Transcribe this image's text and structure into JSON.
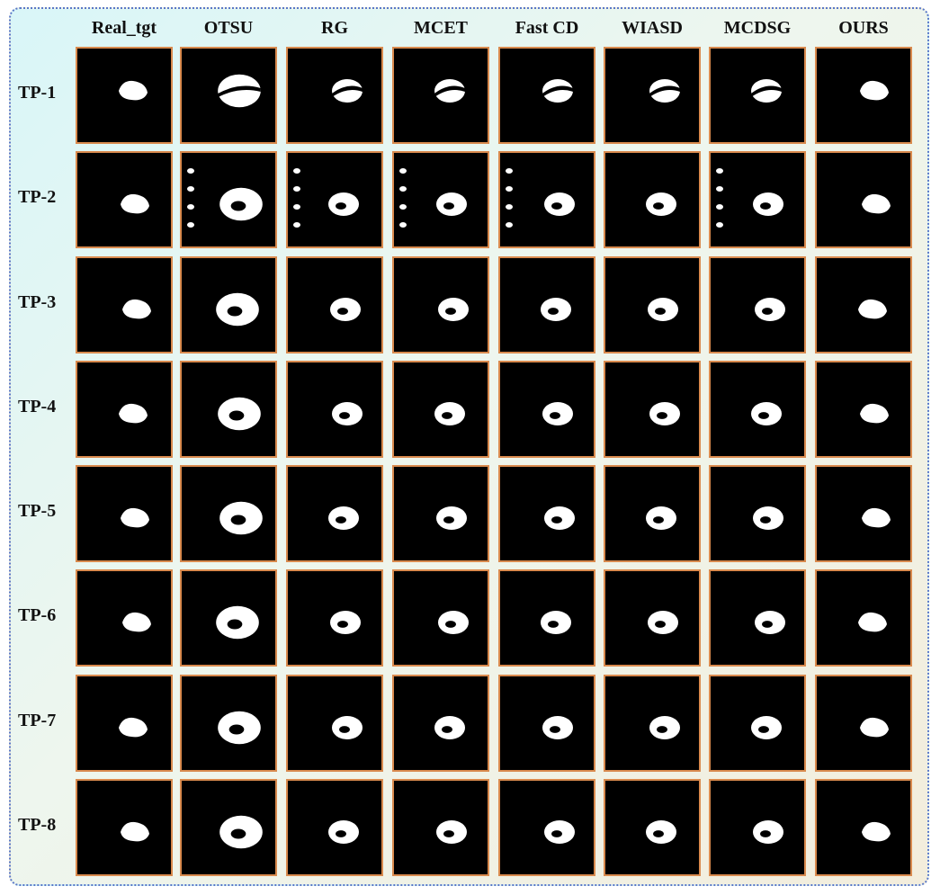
{
  "header": {
    "columns": [
      "Real_tgt",
      "OTSU",
      "RG",
      "MCET",
      "Fast CD",
      "WIASD",
      "MCDSG",
      "OURS"
    ]
  },
  "rows": [
    "TP-1",
    "TP-2",
    "TP-3",
    "TP-4",
    "TP-5",
    "TP-6",
    "TP-7",
    "TP-8"
  ]
}
